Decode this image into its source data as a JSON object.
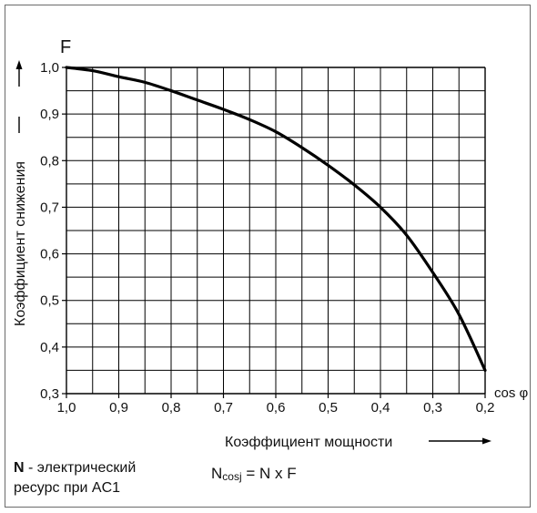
{
  "chart_data": {
    "type": "line",
    "ylabel_top": "F",
    "ylabel": "Коэффициент снижения",
    "xlabel": "Коэффициент мощности",
    "xaxis_end_label": "cos φ",
    "x_ticks": [
      "1,0",
      "0,9",
      "0,8",
      "0,7",
      "0,6",
      "0,5",
      "0,4",
      "0,3",
      "0,2"
    ],
    "y_ticks": [
      "0,3",
      "0,4",
      "0,5",
      "0,6",
      "0,7",
      "0,8",
      "0,9",
      "1,0"
    ],
    "xlim": [
      1.0,
      0.2
    ],
    "ylim": [
      0.3,
      1.0
    ],
    "grid": true,
    "series": [
      {
        "x": [
          1.0,
          0.95,
          0.9,
          0.85,
          0.8,
          0.75,
          0.7,
          0.65,
          0.6,
          0.55,
          0.5,
          0.45,
          0.4,
          0.35,
          0.3,
          0.25,
          0.2
        ],
        "y": [
          1.0,
          0.993,
          0.98,
          0.968,
          0.95,
          0.93,
          0.91,
          0.888,
          0.862,
          0.828,
          0.79,
          0.748,
          0.7,
          0.64,
          0.56,
          0.47,
          0.35
        ]
      }
    ]
  },
  "legend": {
    "n_bold": "N",
    "n_rest": " - электрический",
    "line2": "ресурс при AC1"
  },
  "formula": {
    "n": "N",
    "sub": "cosj",
    "rest": "  = N x F"
  }
}
